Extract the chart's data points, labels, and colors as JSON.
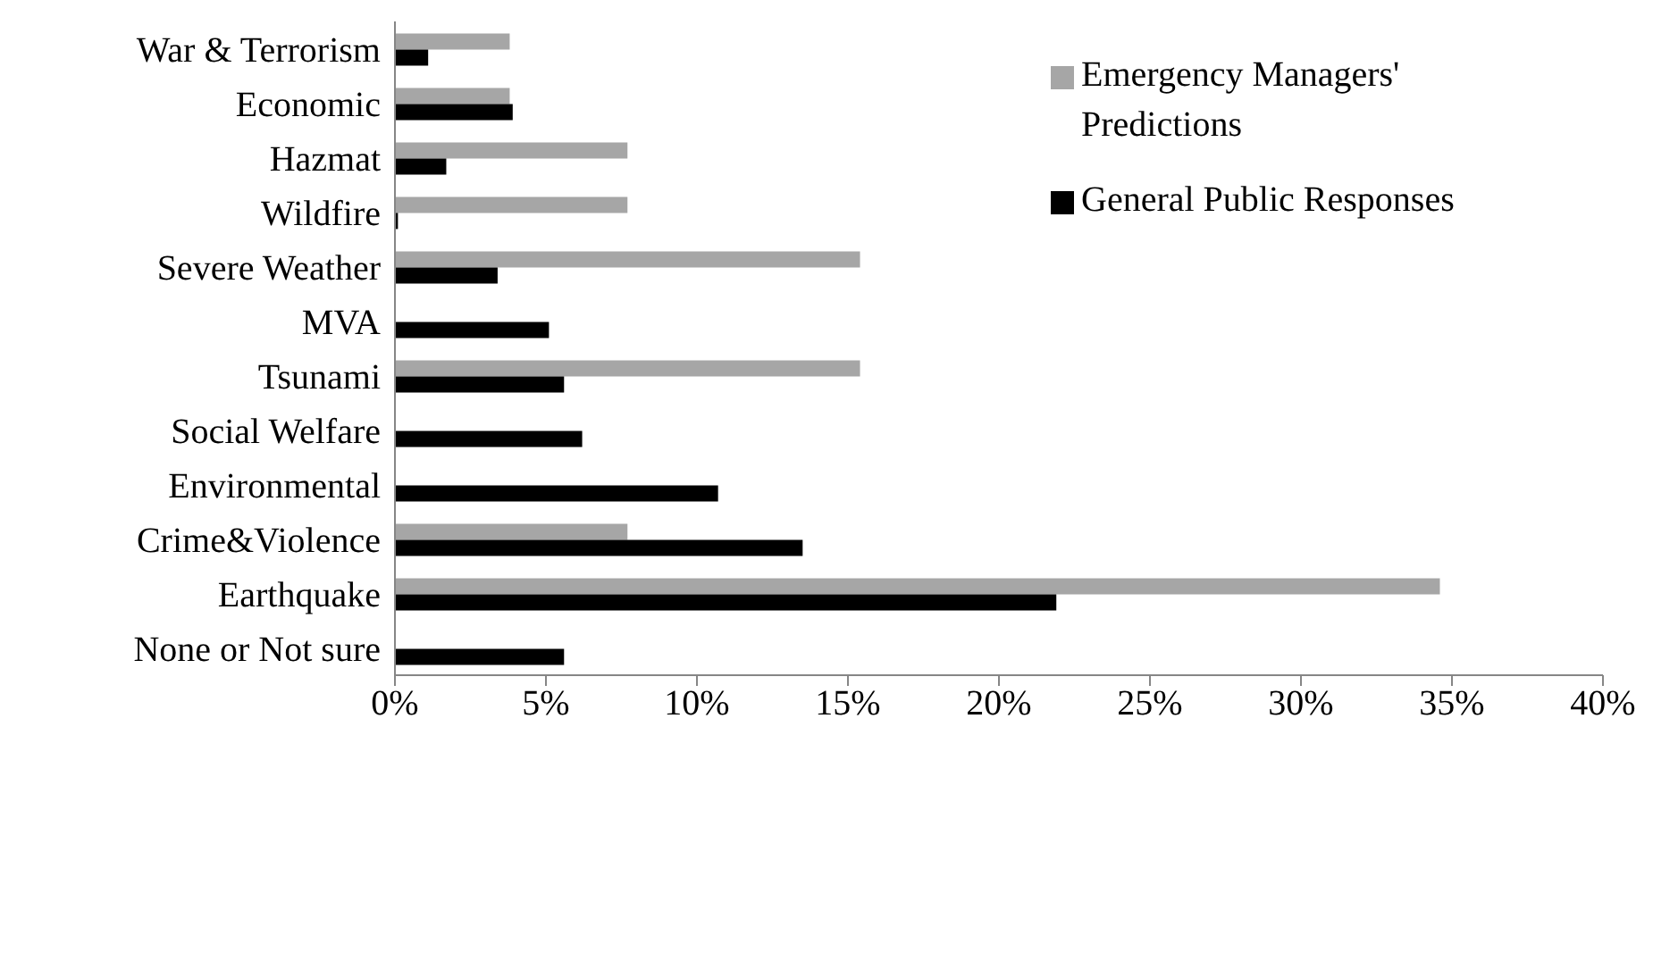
{
  "chart_data": {
    "type": "bar",
    "orientation": "horizontal",
    "categories": [
      "War & Terrorism",
      "Economic",
      "Hazmat",
      "Wildfire",
      "Severe Weather",
      "MVA",
      "Tsunami",
      "Social Welfare",
      "Environmental",
      "Crime&Violence",
      "Earthquake",
      "None or Not sure"
    ],
    "series": [
      {
        "name": "Emergency Managers' Predictions",
        "color": "#a6a6a6",
        "values": [
          3.8,
          3.8,
          7.7,
          7.7,
          15.4,
          null,
          15.4,
          null,
          null,
          7.7,
          34.6,
          null
        ]
      },
      {
        "name": "General Public Responses",
        "color": "#000000",
        "values": [
          1.1,
          3.9,
          1.7,
          0.1,
          3.4,
          5.1,
          5.6,
          6.2,
          10.7,
          13.5,
          21.9,
          5.6
        ]
      }
    ],
    "xlim": [
      0,
      40
    ],
    "xticks": [
      {
        "value": 0,
        "label": "0%"
      },
      {
        "value": 5,
        "label": "5%"
      },
      {
        "value": 10,
        "label": "10%"
      },
      {
        "value": 15,
        "label": "15%"
      },
      {
        "value": 20,
        "label": "20%"
      },
      {
        "value": 25,
        "label": "25%"
      },
      {
        "value": 30,
        "label": "30%"
      },
      {
        "value": 35,
        "label": "35%"
      },
      {
        "value": 40,
        "label": "40%"
      }
    ],
    "legend": "top right"
  }
}
